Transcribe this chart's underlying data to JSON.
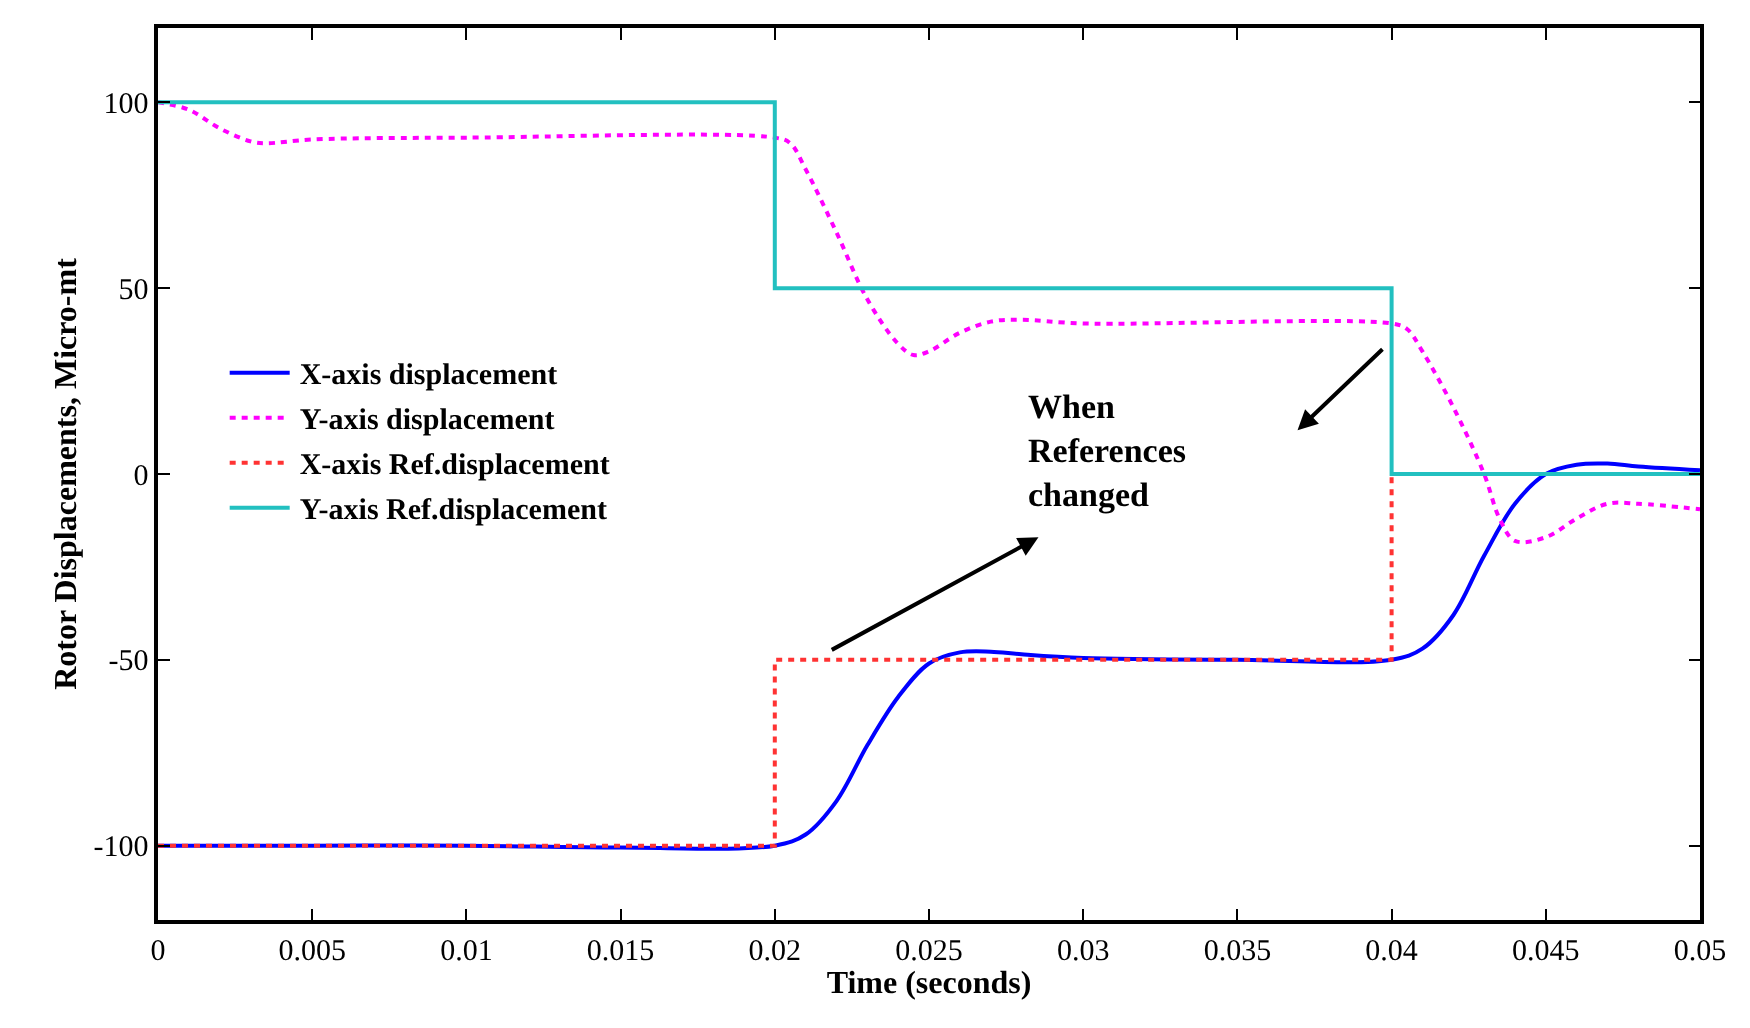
{
  "chart_data": {
    "type": "line",
    "xlabel": "Time (seconds)",
    "ylabel": "Rotor Displacements, Micro-mt",
    "xlim": [
      0,
      0.05
    ],
    "xticks": [
      0,
      0.005,
      0.01,
      0.015,
      0.02,
      0.025,
      0.03,
      0.035,
      0.04,
      0.045,
      0.05
    ],
    "ylim": [
      -120,
      120
    ],
    "yticks": [
      -100,
      -50,
      0,
      50,
      100
    ],
    "legend": "left",
    "marker": "none",
    "series": [
      {
        "name": "X-axis displacement",
        "color": "#0000ff",
        "line_style": "solid",
        "x": [
          0,
          0.005,
          0.01,
          0.015,
          0.02,
          0.021,
          0.022,
          0.023,
          0.024,
          0.025,
          0.026,
          0.027,
          0.028,
          0.03,
          0.035,
          0.04,
          0.041,
          0.042,
          0.043,
          0.044,
          0.045,
          0.046,
          0.047,
          0.048,
          0.05
        ],
        "values": [
          -100,
          -100,
          -100,
          -100.5,
          -100,
          -97,
          -88,
          -73,
          -60,
          -51,
          -48,
          -47.8,
          -48.5,
          -49.5,
          -50,
          -50,
          -47,
          -38,
          -22,
          -8,
          0,
          2.5,
          2.8,
          2,
          1
        ]
      },
      {
        "name": "Y-axis displacement",
        "color": "#ff00ff",
        "line_style": "dotted",
        "x": [
          0,
          0.001,
          0.002,
          0.003,
          0.0035,
          0.005,
          0.01,
          0.02,
          0.0205,
          0.021,
          0.022,
          0.023,
          0.024,
          0.0245,
          0.025,
          0.026,
          0.027,
          0.028,
          0.03,
          0.04,
          0.0405,
          0.041,
          0.042,
          0.043,
          0.0435,
          0.044,
          0.045,
          0.046,
          0.047,
          0.048,
          0.05
        ],
        "values": [
          100,
          98,
          93,
          89.5,
          89,
          90,
          90.5,
          90.5,
          89,
          82,
          65,
          47,
          35,
          32,
          33,
          38,
          41,
          41.5,
          40.5,
          40.5,
          39,
          33,
          18,
          0,
          -12,
          -18,
          -17,
          -12,
          -8,
          -8,
          -9.5
        ]
      },
      {
        "name": "X-axis Ref.displacement",
        "type": "step",
        "color": "#ff3333",
        "line_style": "dotted",
        "x": [
          0,
          0.02,
          0.04,
          0.05
        ],
        "values": [
          -100,
          -50,
          0,
          0
        ]
      },
      {
        "name": "Y-axis Ref.displacement",
        "type": "step",
        "color": "#22c0c0",
        "line_style": "solid",
        "x": [
          0,
          0.02,
          0.04,
          0.05
        ],
        "values": [
          100,
          50,
          0,
          0
        ]
      }
    ],
    "annotations": [
      "When\nReferences\nchanged"
    ]
  }
}
